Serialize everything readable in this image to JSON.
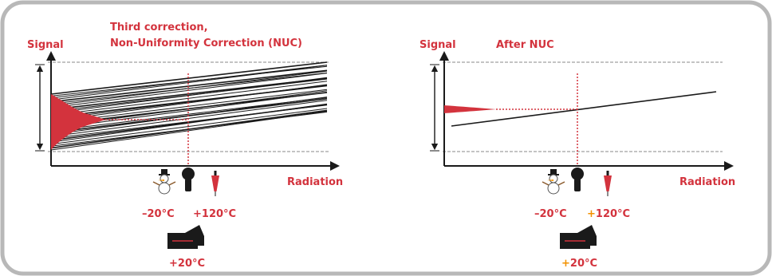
{
  "colors": {
    "accent": "#d3333d",
    "orange": "#f39200",
    "frame": "#b8b8b8",
    "axis": "#1a1a1a"
  },
  "left_panel": {
    "title_line1": "Third correction,",
    "title_line2": "Non-Uniformity Correction (NUC)",
    "y_label": "Signal",
    "x_label": "Radiation",
    "temp_cold": "–20°C",
    "temp_hot": "+120°C",
    "temp_camera": "+20°C",
    "icons": [
      "snowman-icon",
      "black-body-icon",
      "thermometer-icon",
      "camera-icon"
    ]
  },
  "right_panel": {
    "y_label": "Signal",
    "title": "After NUC",
    "x_label": "Radiation",
    "temp_cold": "–20°C",
    "temp_hot_sign": "+",
    "temp_hot_value": "120°C",
    "temp_camera_sign": "+",
    "temp_camera_value": "20°C",
    "icons": [
      "snowman-icon",
      "black-body-icon",
      "thermometer-icon",
      "camera-icon"
    ]
  }
}
